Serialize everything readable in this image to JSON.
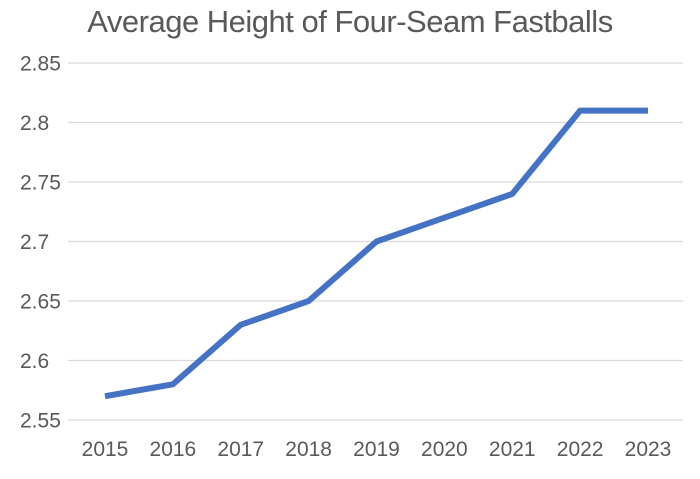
{
  "chart_data": {
    "type": "line",
    "title": "Average Height of Four-Seam Fastballs",
    "categories": [
      "2015",
      "2016",
      "2017",
      "2018",
      "2019",
      "2020",
      "2021",
      "2022",
      "2023"
    ],
    "values": [
      2.57,
      2.58,
      2.63,
      2.65,
      2.7,
      2.72,
      2.74,
      2.81,
      2.81
    ],
    "xlabel": "",
    "ylabel": "",
    "ylim": [
      2.55,
      2.85
    ],
    "yticks": [
      2.55,
      2.6,
      2.65,
      2.7,
      2.75,
      2.8,
      2.85
    ],
    "ytick_labels": [
      "2.55",
      "2.6",
      "2.65",
      "2.7",
      "2.75",
      "2.8",
      "2.85"
    ],
    "grid": "horizontal-only",
    "legend": "none",
    "colors": {
      "line": "#4472C4",
      "gridline": "#D9D9D9",
      "tick_label": "#595959",
      "title": "#595959",
      "background": "#FFFFFF"
    }
  }
}
